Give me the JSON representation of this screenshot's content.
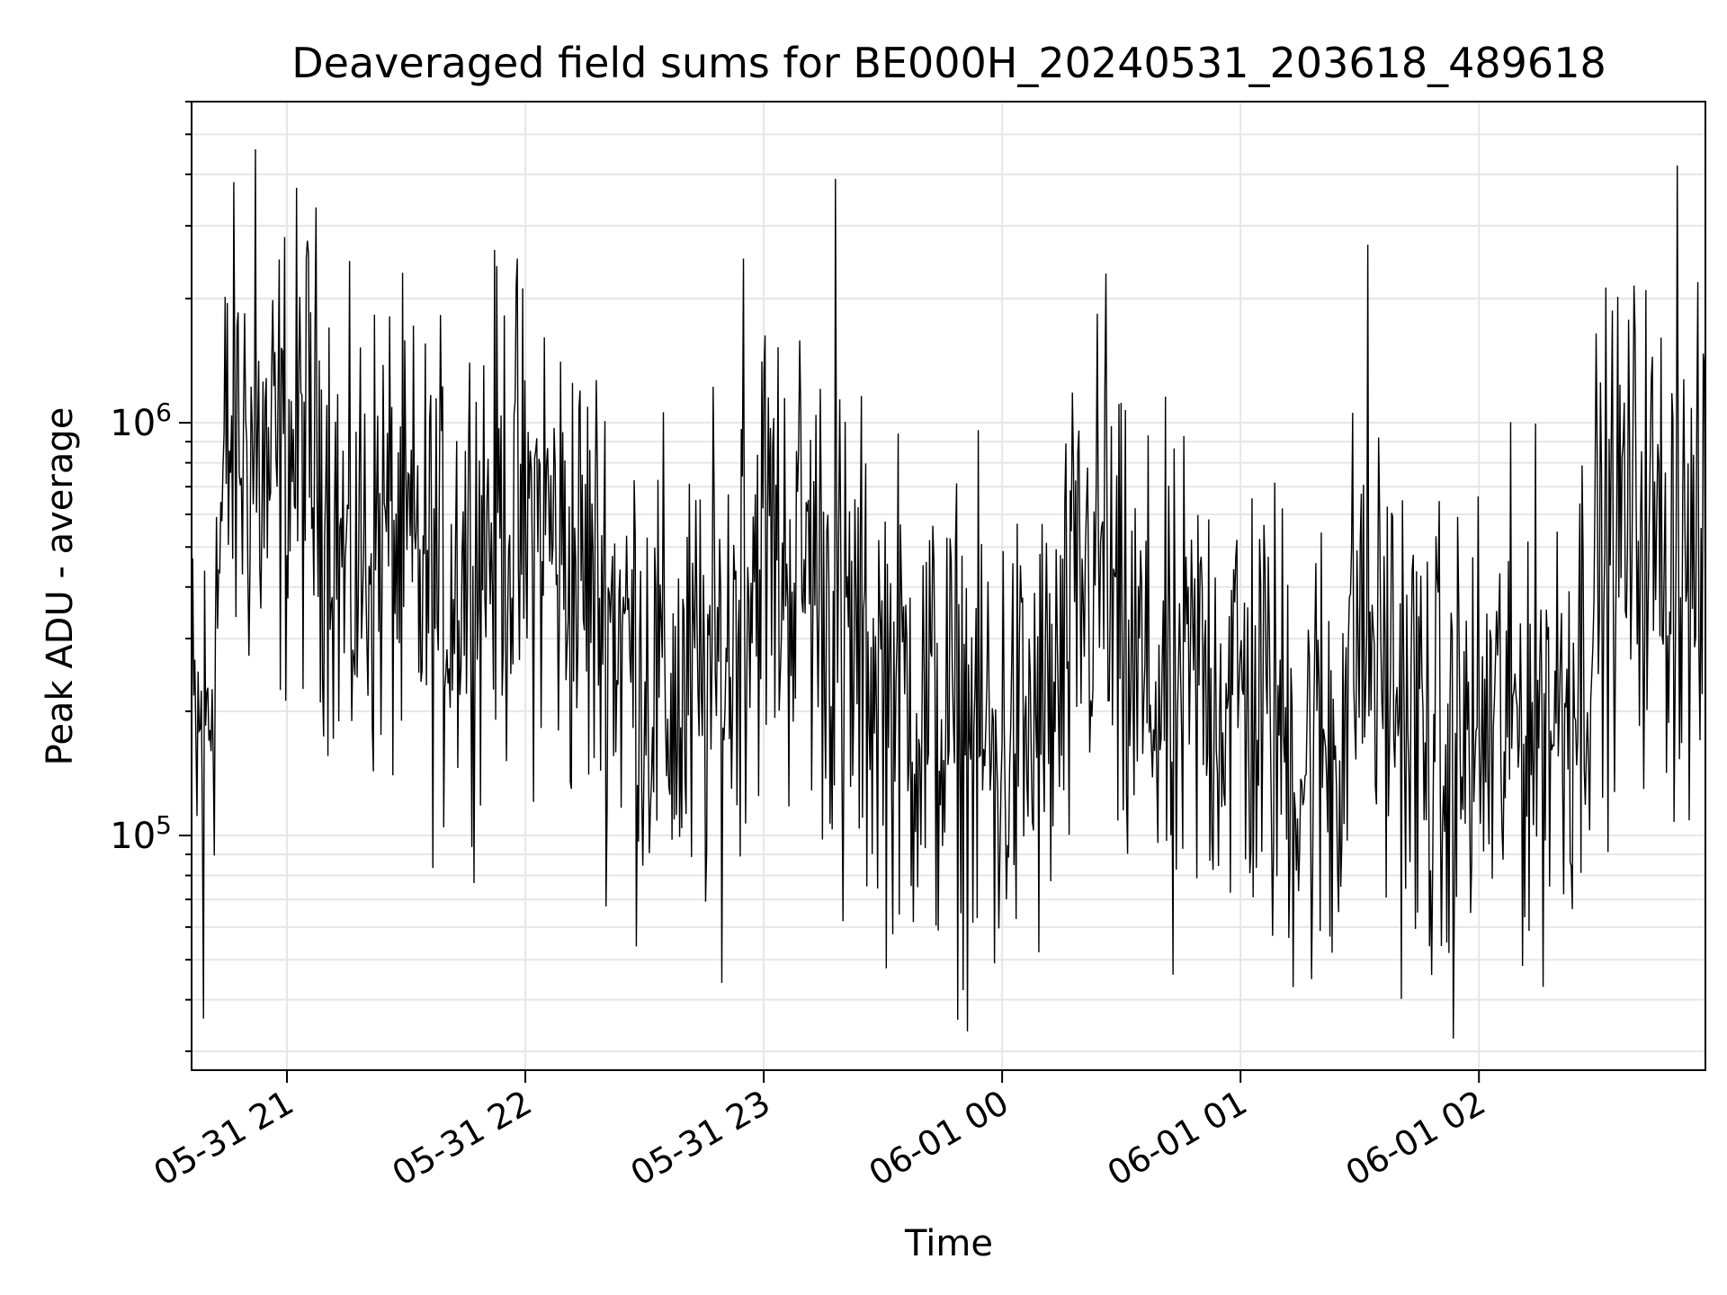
{
  "chart_data": {
    "type": "line",
    "title": "Deaveraged field sums for BE000H_20240531_203618_489618",
    "xlabel": "Time",
    "ylabel": "Peak ADU - average",
    "y_scale": "log",
    "ylim": [
      27000,
      6000000
    ],
    "xlim": [
      "2024-05-31 20:36",
      "2024-06-01 02:57"
    ],
    "grid": true,
    "line_color": "#000000",
    "grid_color": "#e6e6e6",
    "x_ticks": [
      {
        "value": "2024-05-31 21:00",
        "label": "05-31 21"
      },
      {
        "value": "2024-05-31 22:00",
        "label": "05-31 22"
      },
      {
        "value": "2024-05-31 23:00",
        "label": "05-31 23"
      },
      {
        "value": "2024-06-01 00:00",
        "label": "06-01 00"
      },
      {
        "value": "2024-06-01 01:00",
        "label": "06-01 01"
      },
      {
        "value": "2024-06-01 02:00",
        "label": "06-01 02"
      }
    ],
    "y_ticks": [
      {
        "value": 100000,
        "base": "10",
        "exp": "5"
      },
      {
        "value": 1000000,
        "base": "10",
        "exp": "6"
      }
    ],
    "series": [
      {
        "name": "",
        "x": [
          "2024-05-31 20:36",
          "2024-05-31 20:40",
          "2024-05-31 20:45",
          "2024-05-31 20:50",
          "2024-05-31 20:55",
          "2024-05-31 21:00",
          "2024-05-31 21:05",
          "2024-05-31 21:10",
          "2024-05-31 21:15",
          "2024-05-31 21:20",
          "2024-05-31 21:25",
          "2024-05-31 21:30",
          "2024-05-31 21:35",
          "2024-05-31 21:40",
          "2024-05-31 21:45",
          "2024-05-31 21:50",
          "2024-05-31 21:55",
          "2024-05-31 22:00",
          "2024-05-31 22:05",
          "2024-05-31 22:10",
          "2024-05-31 22:15",
          "2024-05-31 22:20",
          "2024-05-31 22:25",
          "2024-05-31 22:30",
          "2024-05-31 22:35",
          "2024-05-31 22:40",
          "2024-05-31 22:45",
          "2024-05-31 22:50",
          "2024-05-31 22:55",
          "2024-05-31 23:00",
          "2024-05-31 23:05",
          "2024-05-31 23:10",
          "2024-05-31 23:15",
          "2024-05-31 23:20",
          "2024-05-31 23:25",
          "2024-05-31 23:30",
          "2024-05-31 23:35",
          "2024-05-31 23:40",
          "2024-05-31 23:45",
          "2024-05-31 23:50",
          "2024-05-31 23:55",
          "2024-06-01 00:00",
          "2024-06-01 00:05",
          "2024-06-01 00:10",
          "2024-06-01 00:15",
          "2024-06-01 00:20",
          "2024-06-01 00:25",
          "2024-06-01 00:30",
          "2024-06-01 00:35",
          "2024-06-01 00:40",
          "2024-06-01 00:45",
          "2024-06-01 00:50",
          "2024-06-01 00:55",
          "2024-06-01 01:00",
          "2024-06-01 01:05",
          "2024-06-01 01:10",
          "2024-06-01 01:15",
          "2024-06-01 01:20",
          "2024-06-01 01:25",
          "2024-06-01 01:30",
          "2024-06-01 01:35",
          "2024-06-01 01:40",
          "2024-06-01 01:45",
          "2024-06-01 01:50",
          "2024-06-01 01:55",
          "2024-06-01 02:00",
          "2024-06-01 02:05",
          "2024-06-01 02:10",
          "2024-06-01 02:15",
          "2024-06-01 02:20",
          "2024-06-01 02:25",
          "2024-06-01 02:30",
          "2024-06-01 02:35",
          "2024-06-01 02:40",
          "2024-06-01 02:45",
          "2024-06-01 02:50",
          "2024-06-01 02:55"
        ],
        "y": [
          150000,
          180000,
          850000,
          900000,
          700000,
          850000,
          900000,
          750000,
          400000,
          500000,
          550000,
          450000,
          420000,
          400000,
          480000,
          550000,
          600000,
          520000,
          600000,
          450000,
          420000,
          380000,
          300000,
          250000,
          220000,
          200000,
          230000,
          250000,
          400000,
          550000,
          450000,
          480000,
          400000,
          300000,
          260000,
          240000,
          220000,
          200000,
          180000,
          180000,
          170000,
          160000,
          170000,
          180000,
          220000,
          400000,
          450000,
          250000,
          230000,
          220000,
          210000,
          240000,
          230000,
          220000,
          200000,
          180000,
          150000,
          160000,
          180000,
          350000,
          260000,
          220000,
          170000,
          150000,
          160000,
          170000,
          180000,
          190000,
          200000,
          210000,
          250000,
          450000,
          550000,
          600000,
          500000,
          450000,
          420000
        ],
        "peaks": [
          {
            "x": "2024-05-31 20:52",
            "y": 4600000
          },
          {
            "x": "2024-05-31 21:05",
            "y": 2500000
          },
          {
            "x": "2024-05-31 21:58",
            "y": 2500000
          },
          {
            "x": "2024-05-31 22:55",
            "y": 2500000
          },
          {
            "x": "2024-05-31 23:18",
            "y": 3900000
          },
          {
            "x": "2024-06-01 00:26",
            "y": 2300000
          },
          {
            "x": "2024-06-01 01:32",
            "y": 2700000
          },
          {
            "x": "2024-06-01 02:50",
            "y": 4200000
          }
        ],
        "troughs": [
          {
            "x": "2024-05-31 20:39",
            "y": 36000
          },
          {
            "x": "2024-05-31 23:20",
            "y": 62000
          },
          {
            "x": "2024-05-31 23:58",
            "y": 49000
          },
          {
            "x": "2024-06-01 00:43",
            "y": 46000
          },
          {
            "x": "2024-06-01 01:23",
            "y": 52000
          },
          {
            "x": "2024-06-01 01:52",
            "y": 55000
          }
        ]
      }
    ]
  }
}
